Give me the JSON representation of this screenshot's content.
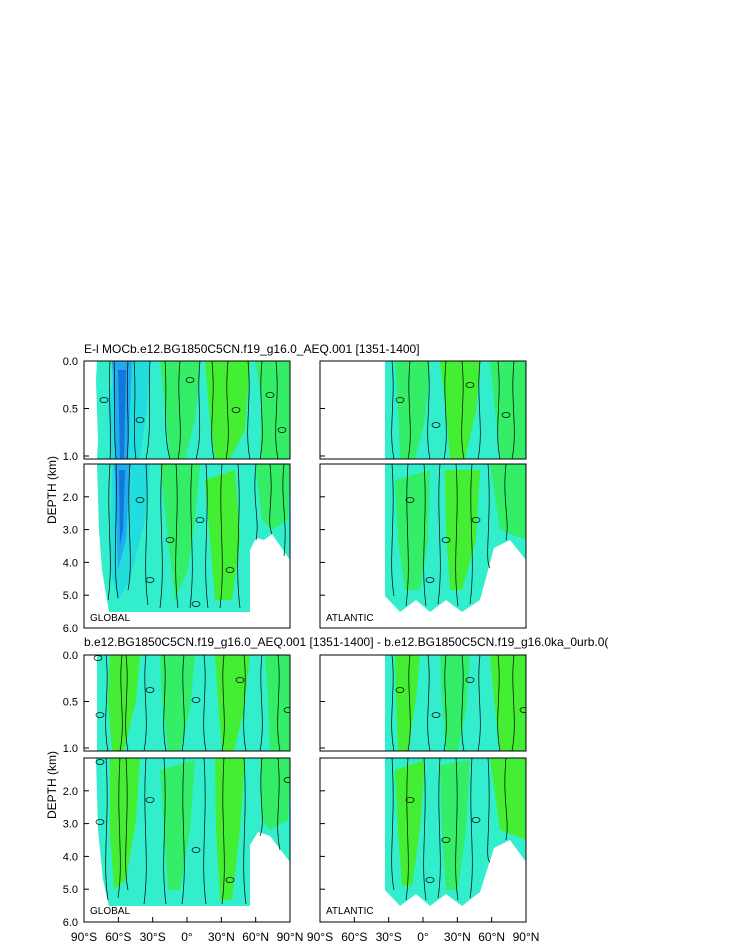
{
  "figure": {
    "top_title": "E-l MOCb.e12.BG1850C5CN.f19_g16.0_AEQ.001 [1351-1400]",
    "bottom_title": "b.e12.BG1850C5CN.f19_g16.0_AEQ.001 [1351-1400] - b.e12.BG1850C5CN.f19_g16.0ka_0urb.0("
  },
  "chart_data": [
    {
      "type": "heatmap",
      "title": "E-l MOCb.e12.BG1850C5CN.f19_g16.0_AEQ.001 [1351-1400]",
      "ylabel": "DEPTH (km)",
      "y_ticks_upper": [
        "0.0",
        "0.5",
        "1.0"
      ],
      "y_ticks_lower": [
        "2.0",
        "3.0",
        "4.0",
        "5.0",
        "6.0"
      ],
      "x_ticks": [
        "90°S",
        "60°S",
        "30°S",
        "0°",
        "30°N",
        "60°N",
        "90°N"
      ],
      "xlim": [
        -90,
        90
      ],
      "ylim": [
        6.0,
        0.0
      ],
      "contour_label": "0",
      "panels": [
        {
          "region": "GLOBAL",
          "lat_range": [
            -78,
            90
          ]
        },
        {
          "region": "ATLANTIC",
          "lat_range": [
            -34,
            90
          ]
        }
      ]
    },
    {
      "type": "heatmap",
      "title": "b.e12.BG1850C5CN.f19_g16.0_AEQ.001 [1351-1400] - b.e12.BG1850C5CN.f19_g16.0ka_0urb.0(",
      "ylabel": "DEPTH (km)",
      "y_ticks_upper": [
        "0.0",
        "0.5",
        "1.0"
      ],
      "y_ticks_lower": [
        "2.0",
        "3.0",
        "4.0",
        "5.0",
        "6.0"
      ],
      "x_ticks": [
        "90°S",
        "60°S",
        "30°S",
        "0°",
        "30°N",
        "60°N",
        "90°N"
      ],
      "xlim": [
        -90,
        90
      ],
      "ylim": [
        6.0,
        0.0
      ],
      "contour_label": "0",
      "panels": [
        {
          "region": "GLOBAL",
          "lat_range": [
            -78,
            90
          ]
        },
        {
          "region": "ATLANTIC",
          "lat_range": [
            -34,
            90
          ]
        }
      ]
    }
  ],
  "colors": {
    "fill_teal": "#33EECC",
    "fill_cyan": "#22DDDD",
    "fill_green": "#33EE66",
    "fill_lime": "#44EE33",
    "fill_blue": "#22AAEE",
    "fill_darkblue": "#1177DD",
    "frame": "#000000"
  }
}
